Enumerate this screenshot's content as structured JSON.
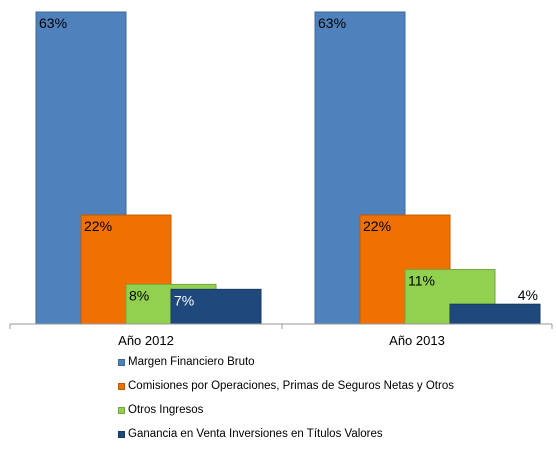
{
  "chart_data": {
    "type": "bar",
    "categories": [
      "Año 2012",
      "Año 2013"
    ],
    "ylim": [
      0,
      63
    ],
    "series": [
      {
        "name": "Margen Financiero Bruto",
        "values": [
          63,
          63
        ],
        "labels": [
          "63%",
          "63%"
        ],
        "color": "#4F81BD"
      },
      {
        "name": "Comisiones por Operaciones, Primas de Seguros Netas y Otros",
        "values": [
          22,
          22
        ],
        "labels": [
          "22%",
          "22%"
        ],
        "color": "#F07000"
      },
      {
        "name": "Otros Ingresos",
        "values": [
          8,
          11
        ],
        "labels": [
          "8%",
          "11%"
        ],
        "color": "#92D050"
      },
      {
        "name": "Ganancia en Venta Inversiones en Títulos Valores",
        "values": [
          7,
          4
        ],
        "labels": [
          "7%",
          "4%"
        ],
        "color": "#1F497D"
      }
    ]
  }
}
